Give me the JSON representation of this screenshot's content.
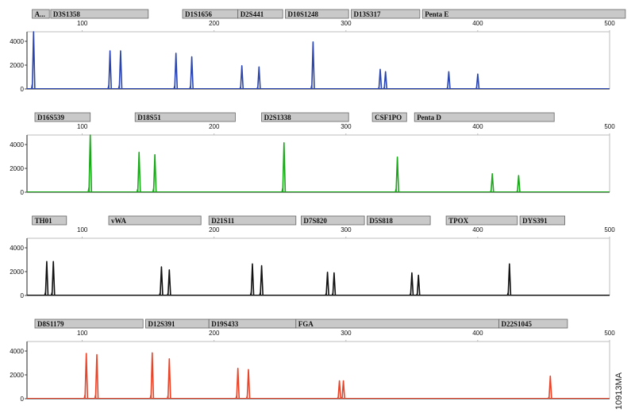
{
  "figure_id": "10913MA",
  "chart_data": [
    {
      "type": "line",
      "color": "#2a45b0",
      "xlim": [
        58,
        500
      ],
      "ylim": [
        0,
        4800
      ],
      "x_ticks": [
        100,
        200,
        300,
        400,
        500
      ],
      "y_ticks": [
        0,
        2000,
        4000
      ],
      "loci": [
        {
          "label": "A...",
          "start": 62,
          "end": 75
        },
        {
          "label": "D3S1358",
          "start": 76,
          "end": 150
        },
        {
          "label": "D1S1656",
          "start": 176,
          "end": 218
        },
        {
          "label": "D2S441",
          "start": 218,
          "end": 252
        },
        {
          "label": "D10S1248",
          "start": 254,
          "end": 302
        },
        {
          "label": "D13S317",
          "start": 304,
          "end": 356
        },
        {
          "label": "Penta E",
          "start": 358,
          "end": 512
        }
      ],
      "peaks": [
        {
          "x": 63,
          "y": 4800
        },
        {
          "x": 121,
          "y": 3200
        },
        {
          "x": 129,
          "y": 3200
        },
        {
          "x": 171,
          "y": 3000
        },
        {
          "x": 183,
          "y": 2700
        },
        {
          "x": 221,
          "y": 1950
        },
        {
          "x": 234,
          "y": 1850
        },
        {
          "x": 275,
          "y": 3950
        },
        {
          "x": 326,
          "y": 1650
        },
        {
          "x": 330,
          "y": 1450
        },
        {
          "x": 378,
          "y": 1450
        },
        {
          "x": 400,
          "y": 1250
        }
      ]
    },
    {
      "type": "line",
      "color": "#18a818",
      "xlim": [
        58,
        500
      ],
      "ylim": [
        0,
        4800
      ],
      "x_ticks": [
        100,
        200,
        300,
        400,
        500
      ],
      "y_ticks": [
        0,
        2000,
        4000
      ],
      "loci": [
        {
          "label": "D16S539",
          "start": 64,
          "end": 106
        },
        {
          "label": "D18S51",
          "start": 140,
          "end": 216
        },
        {
          "label": "D2S1338",
          "start": 236,
          "end": 302
        },
        {
          "label": "CSF1PO",
          "start": 320,
          "end": 346
        },
        {
          "label": "Penta D",
          "start": 352,
          "end": 458
        }
      ],
      "peaks": [
        {
          "x": 106,
          "y": 4800
        },
        {
          "x": 143,
          "y": 3350
        },
        {
          "x": 155,
          "y": 3150
        },
        {
          "x": 253,
          "y": 4150
        },
        {
          "x": 339,
          "y": 2950
        },
        {
          "x": 411,
          "y": 1550
        },
        {
          "x": 431,
          "y": 1400
        }
      ]
    },
    {
      "type": "line",
      "color": "#111111",
      "xlim": [
        58,
        500
      ],
      "ylim": [
        0,
        4800
      ],
      "x_ticks": [
        100,
        200,
        300,
        400,
        500
      ],
      "y_ticks": [
        0,
        2000,
        4000
      ],
      "loci": [
        {
          "label": "TH01",
          "start": 62,
          "end": 88
        },
        {
          "label": "vWA",
          "start": 120,
          "end": 190
        },
        {
          "label": "D21S11",
          "start": 196,
          "end": 262
        },
        {
          "label": "D7S820",
          "start": 266,
          "end": 314
        },
        {
          "label": "D5S818",
          "start": 316,
          "end": 364
        },
        {
          "label": "TPOX",
          "start": 376,
          "end": 430
        },
        {
          "label": "DYS391",
          "start": 432,
          "end": 466
        }
      ],
      "peaks": [
        {
          "x": 73,
          "y": 2850
        },
        {
          "x": 78,
          "y": 2850
        },
        {
          "x": 160,
          "y": 2400
        },
        {
          "x": 166,
          "y": 2150
        },
        {
          "x": 229,
          "y": 2650
        },
        {
          "x": 236,
          "y": 2500
        },
        {
          "x": 286,
          "y": 1950
        },
        {
          "x": 291,
          "y": 1900
        },
        {
          "x": 350,
          "y": 1900
        },
        {
          "x": 355,
          "y": 1700
        },
        {
          "x": 424,
          "y": 2650
        }
      ]
    },
    {
      "type": "line",
      "color": "#e8442a",
      "xlim": [
        58,
        500
      ],
      "ylim": [
        0,
        4800
      ],
      "x_ticks": [
        100,
        200,
        300,
        400,
        500
      ],
      "y_ticks": [
        0,
        2000,
        4000
      ],
      "loci": [
        {
          "label": "D8S1179",
          "start": 64,
          "end": 146
        },
        {
          "label": "D12S391",
          "start": 148,
          "end": 196
        },
        {
          "label": "D19S433",
          "start": 196,
          "end": 262
        },
        {
          "label": "FGA",
          "start": 262,
          "end": 416
        },
        {
          "label": "D22S1045",
          "start": 416,
          "end": 468
        }
      ],
      "peaks": [
        {
          "x": 103,
          "y": 3800
        },
        {
          "x": 111,
          "y": 3700
        },
        {
          "x": 153,
          "y": 3850
        },
        {
          "x": 166,
          "y": 3350
        },
        {
          "x": 218,
          "y": 2550
        },
        {
          "x": 226,
          "y": 2450
        },
        {
          "x": 295,
          "y": 1500
        },
        {
          "x": 298,
          "y": 1500
        },
        {
          "x": 455,
          "y": 1900
        }
      ]
    }
  ]
}
